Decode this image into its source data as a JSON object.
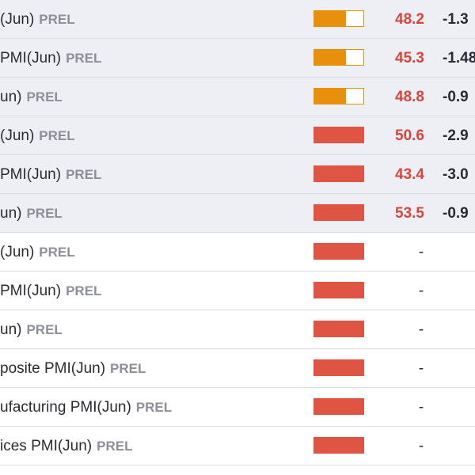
{
  "rows": [
    {
      "event": "(Jun)",
      "tag": "PREL",
      "impact": "medium",
      "actual": "48.2",
      "previous": "-1.3"
    },
    {
      "event": "PMI(Jun)",
      "tag": "PREL",
      "impact": "medium",
      "actual": "45.3",
      "previous": "-1.48"
    },
    {
      "event": "un)",
      "tag": "PREL",
      "impact": "medium",
      "actual": "48.8",
      "previous": "-0.9"
    },
    {
      "event": "(Jun)",
      "tag": "PREL",
      "impact": "high",
      "actual": "50.6",
      "previous": "-2.9"
    },
    {
      "event": "PMI(Jun)",
      "tag": "PREL",
      "impact": "high",
      "actual": "43.4",
      "previous": "-3.0"
    },
    {
      "event": "un)",
      "tag": "PREL",
      "impact": "high",
      "actual": "53.5",
      "previous": "-0.9"
    },
    {
      "event": "(Jun)",
      "tag": "PREL",
      "impact": "high",
      "actual": "-",
      "previous": ""
    },
    {
      "event": "PMI(Jun)",
      "tag": "PREL",
      "impact": "high",
      "actual": "-",
      "previous": ""
    },
    {
      "event": "un)",
      "tag": "PREL",
      "impact": "high",
      "actual": "-",
      "previous": ""
    },
    {
      "event": "posite PMI(Jun)",
      "tag": "PREL",
      "impact": "high",
      "actual": "-",
      "previous": ""
    },
    {
      "event": "ufacturing PMI(Jun)",
      "tag": "PREL",
      "impact": "high",
      "actual": "-",
      "previous": ""
    },
    {
      "event": "ices PMI(Jun)",
      "tag": "PREL",
      "impact": "high",
      "actual": "-",
      "previous": ""
    }
  ],
  "colors": {
    "medium_impact": "#e8900c",
    "high_impact": "#e05443",
    "actual_value": "#d9453b",
    "released_row_bg": "#eeeff4",
    "upcoming_row_bg": "#ffffff"
  }
}
